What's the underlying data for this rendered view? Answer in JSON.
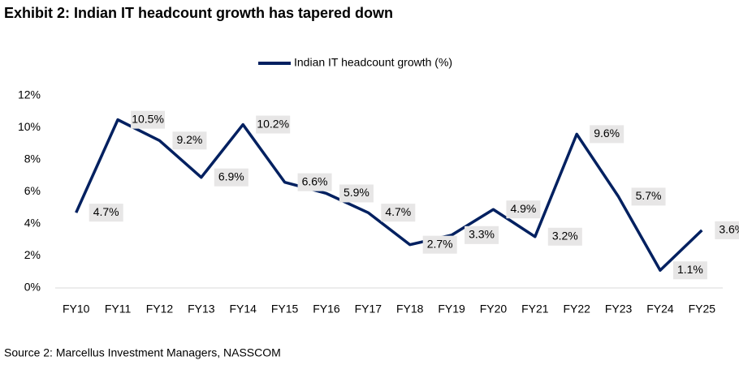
{
  "chart_data": {
    "type": "line",
    "title": "Exhibit 2: Indian IT headcount growth has tapered down",
    "source": "Source 2: Marcellus Investment Managers, NASSCOM",
    "categories": [
      "FY10",
      "FY11",
      "FY12",
      "FY13",
      "FY14",
      "FY15",
      "FY16",
      "FY17",
      "FY18",
      "FY19",
      "FY20",
      "FY21",
      "FY22",
      "FY23",
      "FY24",
      "FY25"
    ],
    "series": [
      {
        "name": "Indian IT headcount growth (%)",
        "color": "#002060",
        "values": [
          4.7,
          10.5,
          9.2,
          6.9,
          10.2,
          6.6,
          5.9,
          4.7,
          2.7,
          3.3,
          4.9,
          3.2,
          9.6,
          5.7,
          1.1,
          3.6
        ],
        "value_labels": [
          "4.7%",
          "10.5%",
          "9.2%",
          "6.9%",
          "10.2%",
          "6.6%",
          "5.9%",
          "4.7%",
          "2.7%",
          "3.3%",
          "4.9%",
          "3.2%",
          "9.6%",
          "5.7%",
          "1.1%",
          "3.6%"
        ]
      }
    ],
    "ylim": [
      0,
      12
    ],
    "yticks": [
      {
        "value": 0,
        "label": "0%"
      },
      {
        "value": 2,
        "label": "2%"
      },
      {
        "value": 4,
        "label": "4%"
      },
      {
        "value": 6,
        "label": "6%"
      },
      {
        "value": 8,
        "label": "8%"
      },
      {
        "value": 10,
        "label": "10%"
      },
      {
        "value": 12,
        "label": "12%"
      }
    ],
    "legend": "top"
  }
}
